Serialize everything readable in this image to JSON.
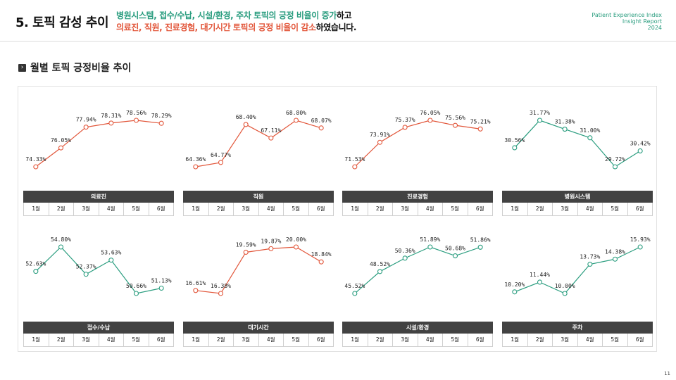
{
  "header": {
    "title": "5. 토픽 감성 추이",
    "line1_green": "병원시스템, 접수/수납, 시설/환경, 주차 토픽의 긍정 비율이 증가",
    "line1_tail": "하고",
    "line2_red": "의료진, 직원, 진료경험, 대기시간 토픽의 긍정 비율이 감소",
    "line2_tail": "하였습니다.",
    "report_line1": "Patient Experience Index",
    "report_line2": "Insight Report",
    "report_line3": "2024"
  },
  "section": {
    "title": "월별 토픽 긍정비율 추이"
  },
  "page_number": "11",
  "colors": {
    "increase": "#2a9d7f",
    "decrease": "#e2563a",
    "footer": "#424242"
  },
  "chart_data": [
    {
      "type": "line",
      "title": "의료진",
      "trend": "decrease",
      "categories": [
        "1월",
        "2월",
        "3월",
        "4월",
        "5월",
        "6월"
      ],
      "values": [
        74.33,
        76.05,
        77.94,
        78.31,
        78.56,
        78.29
      ],
      "labels": [
        "74.33%",
        "76.05%",
        "77.94%",
        "78.31%",
        "78.56%",
        "78.29%"
      ]
    },
    {
      "type": "line",
      "title": "직원",
      "trend": "decrease",
      "categories": [
        "1월",
        "2월",
        "3월",
        "4월",
        "5월",
        "6월"
      ],
      "values": [
        64.36,
        64.77,
        68.4,
        67.11,
        68.8,
        68.07
      ],
      "labels": [
        "64.36%",
        "64.77%",
        "68.40%",
        "67.11%",
        "68.80%",
        "68.07%"
      ]
    },
    {
      "type": "line",
      "title": "진료경험",
      "trend": "decrease",
      "categories": [
        "1월",
        "2월",
        "3월",
        "4월",
        "5월",
        "6월"
      ],
      "values": [
        71.53,
        73.91,
        75.37,
        76.05,
        75.56,
        75.21
      ],
      "labels": [
        "71.53%",
        "73.91%",
        "75.37%",
        "76.05%",
        "75.56%",
        "75.21%"
      ]
    },
    {
      "type": "line",
      "title": "병원시스템",
      "trend": "increase",
      "categories": [
        "1월",
        "2월",
        "3월",
        "4월",
        "5월",
        "6월"
      ],
      "values": [
        30.56,
        31.77,
        31.38,
        31.0,
        29.72,
        30.42
      ],
      "labels": [
        "30.56%",
        "31.77%",
        "31.38%",
        "31.00%",
        "29.72%",
        "30.42%"
      ]
    },
    {
      "type": "line",
      "title": "접수/수납",
      "trend": "increase",
      "categories": [
        "1월",
        "2월",
        "3월",
        "4월",
        "5월",
        "6월"
      ],
      "values": [
        52.63,
        54.8,
        52.37,
        53.63,
        50.66,
        51.13
      ],
      "labels": [
        "52.63%",
        "54.80%",
        "52.37%",
        "53.63%",
        "50.66%",
        "51.13%"
      ]
    },
    {
      "type": "line",
      "title": "대기시간",
      "trend": "decrease",
      "categories": [
        "1월",
        "2월",
        "3월",
        "4월",
        "5월",
        "6월"
      ],
      "values": [
        16.61,
        16.38,
        19.59,
        19.87,
        20.0,
        18.84
      ],
      "labels": [
        "16.61%",
        "16.38%",
        "19.59%",
        "19.87%",
        "20.00%",
        "18.84%"
      ]
    },
    {
      "type": "line",
      "title": "시설/환경",
      "trend": "increase",
      "categories": [
        "1월",
        "2월",
        "3월",
        "4월",
        "5월",
        "6월"
      ],
      "values": [
        45.52,
        48.52,
        50.36,
        51.89,
        50.68,
        51.86
      ],
      "labels": [
        "45.52%",
        "48.52%",
        "50.36%",
        "51.89%",
        "50.68%",
        "51.86%"
      ]
    },
    {
      "type": "line",
      "title": "주차",
      "trend": "increase",
      "categories": [
        "1월",
        "2월",
        "3월",
        "4월",
        "5월",
        "6월"
      ],
      "values": [
        10.2,
        11.44,
        10.0,
        13.73,
        14.38,
        15.93
      ],
      "labels": [
        "10.20%",
        "11.44%",
        "10.00%",
        "13.73%",
        "14.38%",
        "15.93%"
      ]
    }
  ]
}
